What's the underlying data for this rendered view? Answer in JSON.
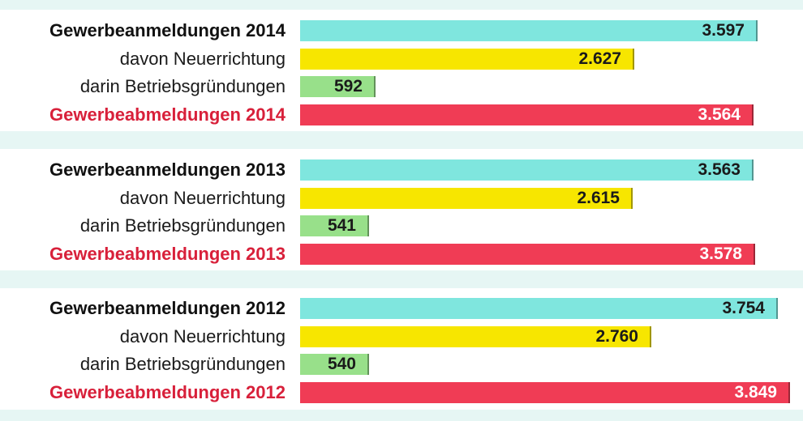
{
  "chart_data": {
    "type": "bar",
    "orientation": "horizontal",
    "xlim": [
      0,
      3900
    ],
    "colors": {
      "anmeldung": "#7fe6de",
      "neuerrichtung": "#f7e600",
      "betriebsgruendung": "#98e08a",
      "abmeldung": "#f03c55"
    },
    "groups": [
      {
        "rows": [
          {
            "label": "Gewerbeanmeldungen 2014",
            "value": 3597,
            "display": "3.597",
            "kind": "anmeldung"
          },
          {
            "label": "davon Neuerrichtung",
            "value": 2627,
            "display": "2.627",
            "kind": "neuerrichtung"
          },
          {
            "label": "darin Betriebsgründungen",
            "value": 592,
            "display": "592",
            "kind": "betriebsgruendung"
          },
          {
            "label": "Gewerbeabmeldungen 2014",
            "value": 3564,
            "display": "3.564",
            "kind": "abmeldung"
          }
        ]
      },
      {
        "rows": [
          {
            "label": "Gewerbeanmeldungen 2013",
            "value": 3563,
            "display": "3.563",
            "kind": "anmeldung"
          },
          {
            "label": "davon Neuerrichtung",
            "value": 2615,
            "display": "2.615",
            "kind": "neuerrichtung"
          },
          {
            "label": "darin Betriebsgründungen",
            "value": 541,
            "display": "541",
            "kind": "betriebsgruendung"
          },
          {
            "label": "Gewerbeabmeldungen 2013",
            "value": 3578,
            "display": "3.578",
            "kind": "abmeldung"
          }
        ]
      },
      {
        "rows": [
          {
            "label": "Gewerbeanmeldungen 2012",
            "value": 3754,
            "display": "3.754",
            "kind": "anmeldung"
          },
          {
            "label": "davon Neuerrichtung",
            "value": 2760,
            "display": "2.760",
            "kind": "neuerrichtung"
          },
          {
            "label": "darin Betriebsgründungen",
            "value": 540,
            "display": "540",
            "kind": "betriebsgruendung"
          },
          {
            "label": "Gewerbeabmeldungen 2012",
            "value": 3849,
            "display": "3.849",
            "kind": "abmeldung"
          }
        ]
      }
    ]
  }
}
